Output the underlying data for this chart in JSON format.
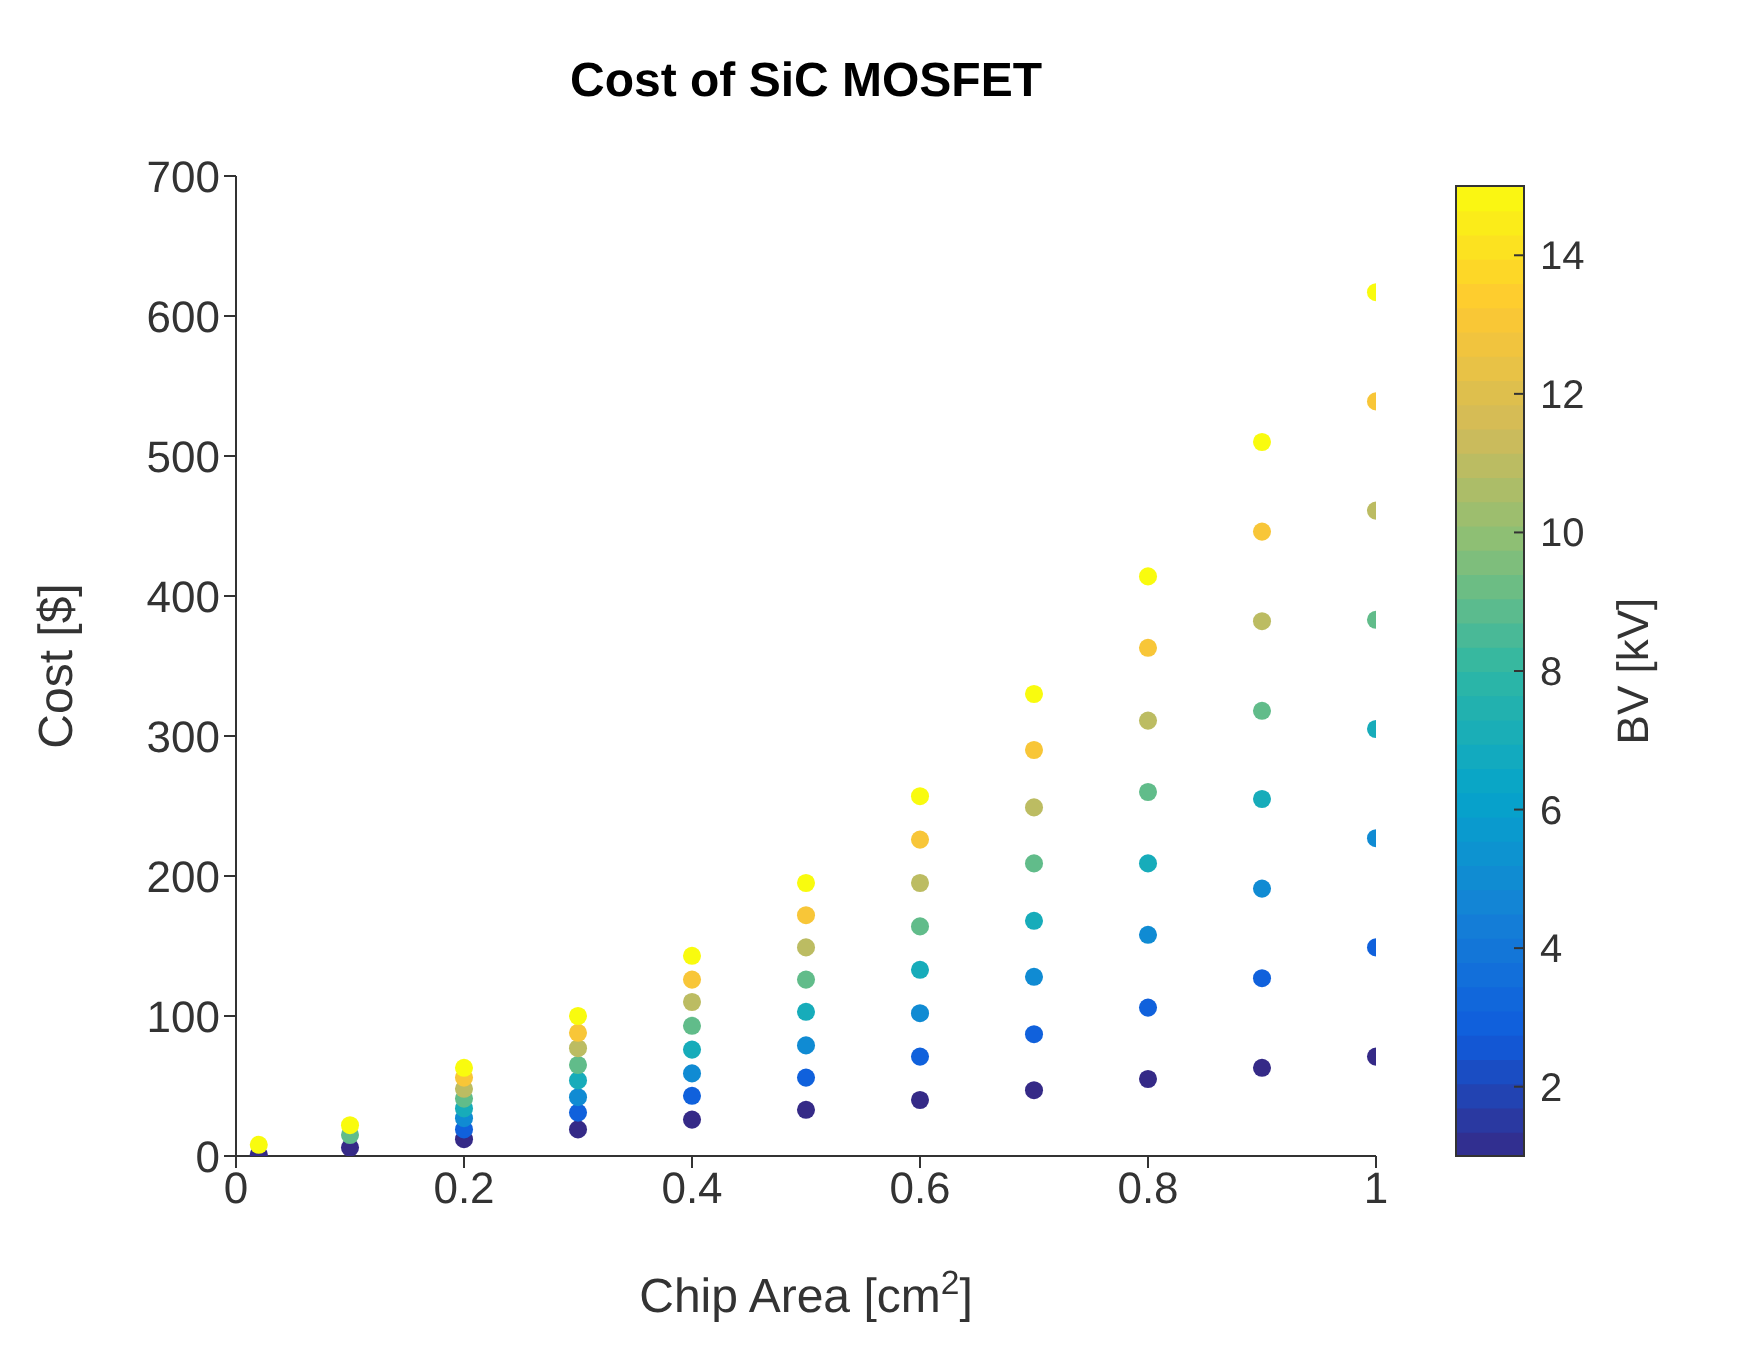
{
  "chart_data": {
    "type": "scatter",
    "title": "Cost of SiC MOSFET",
    "xlabel": "Chip Area [cm$^{2}$]",
    "ylabel": "Cost [$]",
    "clabel": "BV [kV]",
    "xlim": [
      0,
      1
    ],
    "xticks": [
      0,
      0.2,
      0.4,
      0.6,
      0.8,
      1
    ],
    "ylim": [
      0,
      700
    ],
    "yticks": [
      0,
      100,
      200,
      300,
      400,
      500,
      600,
      700
    ],
    "clim": [
      1,
      15
    ],
    "cticks": [
      2,
      4,
      6,
      8,
      10,
      12,
      14
    ],
    "grid": false,
    "legend": false,
    "marker": "circle",
    "series": [
      {
        "x": [
          0.02,
          0.1,
          0.2,
          0.3,
          0.4,
          0.5,
          0.6,
          0.7,
          0.8,
          0.9,
          1.0
        ],
        "values": [
          1,
          6,
          12,
          19,
          26,
          33,
          40,
          47,
          55,
          63,
          71
        ],
        "cvalues": [
          1,
          1,
          1,
          1,
          1,
          1,
          1,
          1,
          1,
          1,
          1
        ]
      },
      {
        "x": [
          0.2,
          0.3,
          0.4,
          0.5,
          0.6,
          0.7,
          0.8,
          0.9,
          1.0
        ],
        "values": [
          19,
          31,
          43,
          56,
          71,
          87,
          106,
          127,
          149
        ],
        "cvalues": [
          3,
          3,
          3,
          3,
          3,
          3,
          3,
          3,
          3
        ]
      },
      {
        "x": [
          0.2,
          0.3,
          0.4,
          0.5,
          0.6,
          0.7,
          0.8,
          0.9,
          1.0
        ],
        "values": [
          27,
          42,
          59,
          79,
          102,
          128,
          158,
          191,
          227
        ],
        "cvalues": [
          5,
          5,
          5,
          5,
          5,
          5,
          5,
          5,
          5
        ]
      },
      {
        "x": [
          0.2,
          0.3,
          0.4,
          0.5,
          0.6,
          0.7,
          0.8,
          0.9,
          1.0
        ],
        "values": [
          34,
          54,
          76,
          103,
          133,
          168,
          209,
          255,
          305
        ],
        "cvalues": [
          7,
          7,
          7,
          7,
          7,
          7,
          7,
          7,
          7
        ]
      },
      {
        "x": [
          0.1,
          0.2,
          0.3,
          0.4,
          0.5,
          0.6,
          0.7,
          0.8,
          0.9,
          1.0
        ],
        "values": [
          15,
          41,
          65,
          93,
          126,
          164,
          209,
          260,
          318,
          383
        ],
        "cvalues": [
          9,
          9,
          9,
          9,
          9,
          9,
          9,
          9,
          9,
          9
        ]
      },
      {
        "x": [
          0.2,
          0.3,
          0.4,
          0.5,
          0.6,
          0.7,
          0.8,
          0.9,
          1.0
        ],
        "values": [
          48,
          77,
          110,
          149,
          195,
          249,
          311,
          382,
          461
        ],
        "cvalues": [
          11,
          11,
          11,
          11,
          11,
          11,
          11,
          11,
          11
        ]
      },
      {
        "x": [
          0.2,
          0.3,
          0.4,
          0.5,
          0.6,
          0.7,
          0.8,
          0.9,
          1.0
        ],
        "values": [
          56,
          88,
          126,
          172,
          226,
          290,
          363,
          446,
          539
        ],
        "cvalues": [
          13,
          13,
          13,
          13,
          13,
          13,
          13,
          13,
          13
        ]
      },
      {
        "x": [
          0.02,
          0.1,
          0.2,
          0.3,
          0.4,
          0.5,
          0.6,
          0.7,
          0.8,
          0.9,
          1.0
        ],
        "values": [
          8,
          22,
          63,
          100,
          143,
          195,
          257,
          330,
          414,
          510,
          617
        ],
        "cvalues": [
          15,
          15,
          15,
          15,
          15,
          15,
          15,
          15,
          15,
          15,
          15
        ]
      }
    ]
  }
}
